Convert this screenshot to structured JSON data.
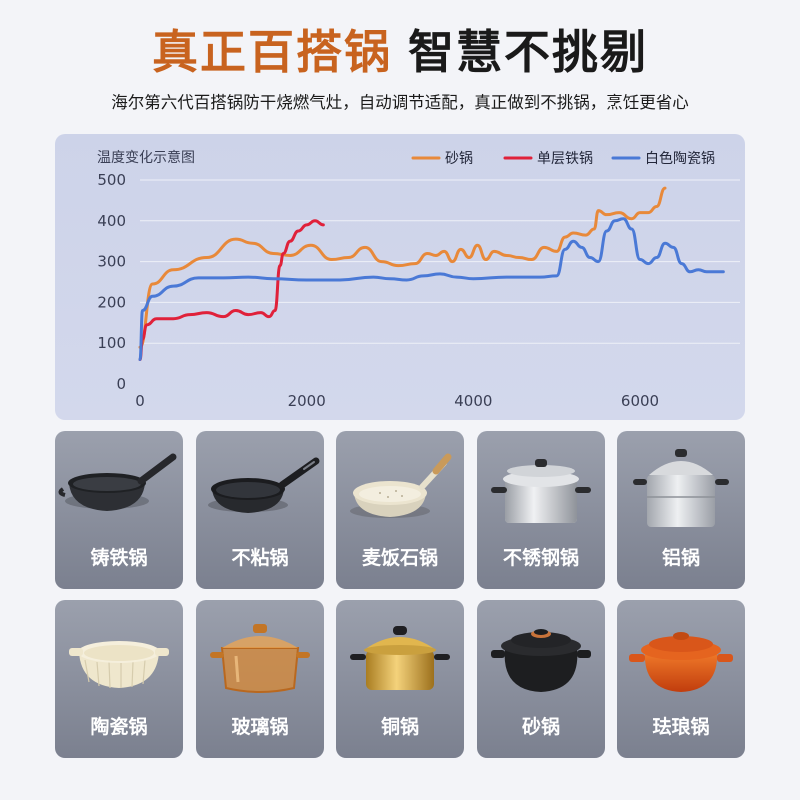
{
  "headline": {
    "accent": "真正百搭锅",
    "dark": "智慧不挑剔"
  },
  "subline": "海尔第六代百搭锅防干烧燃气灶，自动调节适配，真正做到不挑锅，烹饪更省心",
  "chart_data": {
    "type": "line",
    "title": "温度变化示意图",
    "xlabel": "",
    "ylabel": "",
    "xlim": [
      0,
      7200
    ],
    "ylim": [
      0,
      500
    ],
    "xticks": [
      0,
      2000,
      4000,
      6000
    ],
    "yticks": [
      0,
      100,
      200,
      300,
      400,
      500
    ],
    "grid": true,
    "legend_position": "top-right",
    "series": [
      {
        "name": "砂锅",
        "color": "#e8893a",
        "x": [
          0,
          150,
          400,
          800,
          1150,
          1350,
          1600,
          1800,
          2050,
          2300,
          2500,
          2700,
          2900,
          3100,
          3300,
          3450,
          3550,
          3650,
          3750,
          3850,
          3950,
          4050,
          4150,
          4250,
          4400,
          4550,
          4700,
          4850,
          5000,
          5100,
          5200,
          5350,
          5450,
          5500,
          5600,
          5750,
          5900,
          6000,
          6100,
          6200,
          6300
        ],
        "y": [
          90,
          245,
          280,
          310,
          355,
          345,
          320,
          315,
          340,
          305,
          310,
          335,
          300,
          290,
          295,
          320,
          315,
          325,
          300,
          330,
          310,
          340,
          305,
          325,
          315,
          310,
          305,
          335,
          325,
          360,
          370,
          365,
          380,
          425,
          415,
          420,
          405,
          420,
          420,
          435,
          480
        ]
      },
      {
        "name": "单层铁锅",
        "color": "#e0213a",
        "x": [
          0,
          30,
          80,
          200,
          400,
          600,
          800,
          1000,
          1150,
          1300,
          1450,
          1550,
          1620,
          1680,
          1720,
          1800,
          1900,
          2000,
          2100,
          2200
        ],
        "y": [
          60,
          110,
          145,
          160,
          160,
          170,
          175,
          165,
          180,
          170,
          175,
          165,
          180,
          290,
          320,
          350,
          375,
          390,
          400,
          390
        ]
      },
      {
        "name": "白色陶瓷锅",
        "color": "#4a79d6",
        "x": [
          0,
          30,
          150,
          400,
          700,
          1000,
          1300,
          1600,
          2000,
          2400,
          2800,
          3000,
          3200,
          3400,
          3600,
          3800,
          4000,
          4400,
          4800,
          5000,
          5100,
          5200,
          5300,
          5400,
          5500,
          5600,
          5700,
          5800,
          5900,
          6000,
          6100,
          6200,
          6300,
          6400,
          6500,
          6600,
          6700,
          6800,
          7000
        ],
        "y": [
          60,
          180,
          215,
          240,
          260,
          260,
          262,
          258,
          255,
          255,
          262,
          258,
          255,
          265,
          270,
          262,
          258,
          262,
          262,
          265,
          330,
          350,
          335,
          310,
          300,
          375,
          400,
          405,
          380,
          305,
          295,
          310,
          345,
          335,
          295,
          275,
          280,
          275,
          275
        ]
      }
    ]
  },
  "cookware": [
    {
      "label": "铸铁锅",
      "icon": "cast-iron-wok-icon"
    },
    {
      "label": "不粘锅",
      "icon": "nonstick-pan-icon"
    },
    {
      "label": "麦饭石锅",
      "icon": "stone-pan-icon"
    },
    {
      "label": "不锈钢锅",
      "icon": "stainless-pot-icon"
    },
    {
      "label": "铝锅",
      "icon": "aluminum-steamer-icon"
    },
    {
      "label": "陶瓷锅",
      "icon": "ceramic-bowl-icon"
    },
    {
      "label": "玻璃锅",
      "icon": "glass-pot-icon"
    },
    {
      "label": "铜锅",
      "icon": "copper-pot-icon"
    },
    {
      "label": "砂锅",
      "icon": "clay-pot-icon"
    },
    {
      "label": "珐琅锅",
      "icon": "enamel-pot-icon"
    }
  ]
}
